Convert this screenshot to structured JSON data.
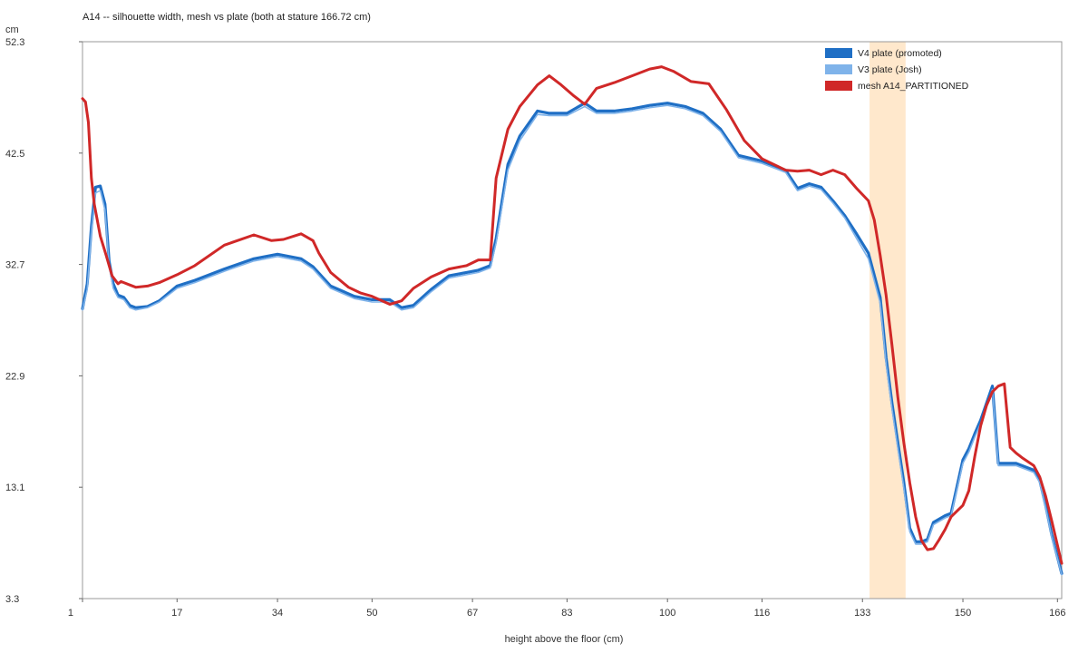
{
  "chart_data": {
    "type": "line",
    "title": "A14 -- silhouette width, mesh vs plate (both at stature 166.72 cm)",
    "xlabel": "height above the floor (cm)",
    "ylabel": "cm",
    "xlim": [
      1,
      166.72
    ],
    "ylim": [
      3.3,
      52.3
    ],
    "x_ticks": [
      1,
      17,
      34,
      50,
      67,
      83,
      100,
      116,
      133,
      150,
      166
    ],
    "y_ticks": [
      3.3,
      13.1,
      22.9,
      32.7,
      42.5,
      52.3
    ],
    "legend_position": "top-right",
    "highlight_band": {
      "x_start": 134.2,
      "x_end": 140.3,
      "color": "#ffe8cc"
    },
    "series": [
      {
        "name": "V4 plate (promoted)",
        "color": "#1f6fc5",
        "x": [
          1,
          1.8,
          2.5,
          3.2,
          4.0,
          4.8,
          5.5,
          6.2,
          7.0,
          8.0,
          9.0,
          10.0,
          12,
          14,
          17,
          20,
          25,
          30,
          34,
          38,
          40,
          43,
          47,
          50,
          53,
          55,
          57,
          60,
          63,
          66,
          68,
          70,
          71,
          73,
          75,
          78,
          80,
          83,
          86,
          88,
          91,
          94,
          97,
          100,
          103,
          106,
          109,
          112,
          116,
          120,
          122,
          124,
          126,
          128,
          130,
          132,
          134,
          136,
          137,
          138,
          139,
          140,
          141,
          142,
          143,
          144,
          145,
          147,
          148,
          150,
          151,
          152,
          153,
          154,
          155,
          156,
          157,
          158,
          159,
          160,
          162,
          163,
          164,
          165,
          166.72
        ],
        "values": [
          28.8,
          31.0,
          36.0,
          39.5,
          39.6,
          38.0,
          33.0,
          31.0,
          30.0,
          29.8,
          29.1,
          28.9,
          29.0,
          29.5,
          30.8,
          31.3,
          32.3,
          33.2,
          33.6,
          33.2,
          32.5,
          30.8,
          29.9,
          29.6,
          29.6,
          28.9,
          29.1,
          30.5,
          31.7,
          32.0,
          32.2,
          32.6,
          35.0,
          41.5,
          44.0,
          46.2,
          46.0,
          46.0,
          46.9,
          46.2,
          46.2,
          46.4,
          46.7,
          46.9,
          46.6,
          46.0,
          44.6,
          42.3,
          41.8,
          41.0,
          39.4,
          39.8,
          39.5,
          38.3,
          37.0,
          35.4,
          33.7,
          29.8,
          24.5,
          20.5,
          17.0,
          13.5,
          9.5,
          8.3,
          8.3,
          8.5,
          10.0,
          10.6,
          10.8,
          15.5,
          16.5,
          17.8,
          19.0,
          20.5,
          22.0,
          15.2,
          15.2,
          15.2,
          15.2,
          15.0,
          14.6,
          13.7,
          11.5,
          9.0,
          5.5
        ]
      },
      {
        "name": "V3 plate (Josh)",
        "color": "#7fb3ea",
        "x": [
          1,
          1.8,
          2.5,
          3.2,
          4.0,
          4.8,
          5.5,
          6.2,
          7.0,
          8.0,
          9.0,
          10.0,
          12,
          14,
          17,
          20,
          25,
          30,
          34,
          38,
          40,
          43,
          47,
          50,
          53,
          55,
          57,
          60,
          63,
          66,
          68,
          70,
          71,
          73,
          75,
          78,
          80,
          83,
          86,
          88,
          91,
          94,
          97,
          100,
          103,
          106,
          109,
          112,
          116,
          120,
          122,
          124,
          126,
          128,
          130,
          132,
          134,
          136,
          137,
          138,
          139,
          140,
          141,
          142,
          143,
          144,
          145,
          147,
          148,
          150,
          151,
          152,
          153,
          154,
          155,
          156,
          157,
          158,
          159,
          160,
          162,
          163,
          164,
          165,
          166.72
        ],
        "values": [
          28.7,
          30.5,
          35.5,
          39.0,
          39.2,
          37.5,
          32.6,
          30.6,
          29.8,
          29.6,
          28.9,
          28.7,
          28.9,
          29.4,
          30.6,
          31.1,
          32.1,
          33.0,
          33.4,
          33.0,
          32.3,
          30.6,
          29.7,
          29.4,
          29.4,
          28.7,
          28.9,
          30.3,
          31.5,
          31.8,
          32.0,
          32.4,
          34.6,
          41.0,
          43.6,
          45.9,
          45.8,
          45.8,
          46.6,
          46.0,
          46.0,
          46.2,
          46.5,
          46.7,
          46.4,
          45.8,
          44.4,
          42.1,
          41.6,
          40.8,
          39.2,
          39.6,
          39.3,
          38.1,
          36.8,
          35.0,
          33.2,
          29.3,
          24.0,
          20.0,
          16.5,
          13.0,
          9.2,
          8.1,
          8.1,
          8.3,
          9.8,
          10.4,
          10.6,
          15.2,
          16.2,
          17.5,
          18.7,
          20.2,
          21.7,
          15.0,
          15.0,
          15.0,
          15.0,
          14.8,
          14.4,
          13.5,
          11.3,
          8.8,
          5.4
        ]
      },
      {
        "name": "mesh A14_PARTITIONED",
        "color": "#d02828",
        "x": [
          1,
          1.5,
          2.0,
          2.5,
          3.0,
          4.0,
          5.0,
          6.0,
          7.0,
          7.5,
          8.0,
          9.0,
          10,
          12,
          14,
          17,
          20,
          25,
          30,
          33,
          35,
          38,
          40,
          41,
          43,
          46,
          48,
          50,
          53,
          55,
          57,
          60,
          63,
          66,
          68,
          70,
          71,
          73,
          75,
          78,
          80,
          82,
          84,
          86,
          88,
          91,
          94,
          97,
          99,
          101,
          104,
          107,
          110,
          113,
          116,
          120,
          122,
          124,
          126,
          128,
          130,
          132,
          134,
          135,
          136,
          137,
          138,
          139,
          140,
          141,
          142,
          143,
          144,
          145,
          146,
          147,
          148,
          150,
          151,
          152,
          153,
          154,
          155,
          156,
          157,
          158,
          159,
          160,
          162,
          163,
          164,
          165,
          166.72
        ],
        "values": [
          47.3,
          47.0,
          45.2,
          40.3,
          38.0,
          35.2,
          33.5,
          31.7,
          31.0,
          31.2,
          31.1,
          30.9,
          30.7,
          30.8,
          31.1,
          31.8,
          32.6,
          34.4,
          35.3,
          34.8,
          34.9,
          35.4,
          34.8,
          33.7,
          32.0,
          30.7,
          30.2,
          29.9,
          29.2,
          29.5,
          30.6,
          31.6,
          32.3,
          32.6,
          33.1,
          33.1,
          40.3,
          44.6,
          46.6,
          48.5,
          49.3,
          48.5,
          47.6,
          46.8,
          48.2,
          48.7,
          49.3,
          49.9,
          50.1,
          49.7,
          48.8,
          48.6,
          46.3,
          43.6,
          42.0,
          41.0,
          40.9,
          41.0,
          40.6,
          41.0,
          40.6,
          39.4,
          38.3,
          36.6,
          33.5,
          30.0,
          25.6,
          21.0,
          17.0,
          13.5,
          10.5,
          8.4,
          7.6,
          7.7,
          8.5,
          9.4,
          10.5,
          11.5,
          12.8,
          15.8,
          18.5,
          20.3,
          21.5,
          22.0,
          22.2,
          16.6,
          16.1,
          15.7,
          15.0,
          14.0,
          12.3,
          10.2,
          6.4
        ]
      }
    ]
  }
}
